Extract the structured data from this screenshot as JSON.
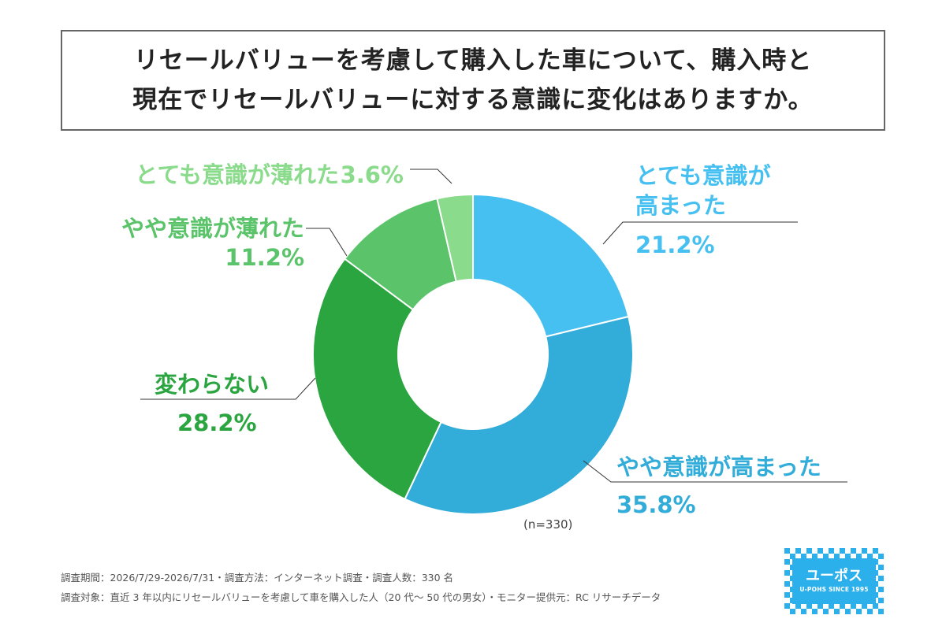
{
  "title": {
    "line1": "リセールバリューを考慮して購入した車について、購入時と",
    "line2": "現在でリセールバリューに対する意識に変化はありますか。"
  },
  "chart_data": {
    "type": "pie",
    "donut": true,
    "categories": [
      "とても意識が高まった",
      "やや意識が高まった",
      "変わらない",
      "やや意識が薄れた",
      "とても意識が薄れた"
    ],
    "values": [
      21.2,
      35.8,
      28.2,
      11.2,
      3.6
    ],
    "value_labels": [
      "21.2%",
      "35.8%",
      "28.2%",
      "11.2%",
      "3.6%"
    ],
    "label_lines": [
      [
        "とても意識が",
        "高まった"
      ],
      [
        "やや意識が高まった"
      ],
      [
        "変わらない"
      ],
      [
        "やや意識が薄れた"
      ],
      [
        "とても意識が薄れた"
      ]
    ],
    "colors": [
      "#45c0f0",
      "#32acd8",
      "#2aa540",
      "#5bc46a",
      "#8bdb8c"
    ],
    "sample_note": "(n=330)"
  },
  "footnotes": {
    "line1": "調査期間：2026/7/29-2026/7/31・調査方法：インターネット調査・調査人数：330 名",
    "line2": "調査対象：直近 3 年以内にリセールバリューを考慮して車を購入した人（20 代～ 50 代の男女）・モニター提供元：RC リサーチデータ"
  },
  "logo": {
    "main": "ユーポス",
    "sub": "U-POHS SINCE 1995"
  }
}
